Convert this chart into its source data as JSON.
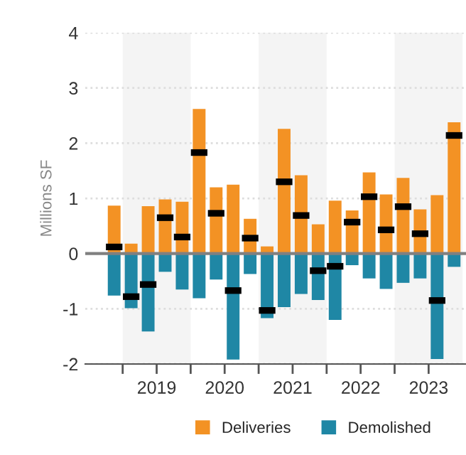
{
  "chart_data": {
    "type": "bar",
    "ylabel": "Millions SF",
    "x": [
      2018.875,
      2019.125,
      2019.375,
      2019.625,
      2019.875,
      2020.125,
      2020.375,
      2020.625,
      2020.875,
      2021.125,
      2021.375,
      2021.625,
      2021.875,
      2022.125,
      2022.375,
      2022.625,
      2022.875,
      2023.125,
      2023.375,
      2023.625,
      2023.875
    ],
    "series": [
      {
        "name": "Deliveries",
        "color": "#f39224",
        "values": [
          0.87,
          0.18,
          0.86,
          0.98,
          0.94,
          2.62,
          1.2,
          1.25,
          0.63,
          0.13,
          2.26,
          1.42,
          0.53,
          0.96,
          0.78,
          1.47,
          1.07,
          1.37,
          0.8,
          1.06,
          2.38
        ]
      },
      {
        "name": "Demolished",
        "color": "#1f87a5",
        "values": [
          -0.76,
          -0.99,
          -1.41,
          -0.33,
          -0.65,
          -0.81,
          -0.47,
          -1.92,
          -0.37,
          -1.17,
          -0.97,
          -0.73,
          -0.84,
          -1.2,
          -0.21,
          -0.45,
          -0.64,
          -0.53,
          -0.45,
          -1.91,
          -0.24
        ]
      },
      {
        "type": "scatter",
        "marker": "square",
        "color": "#000000",
        "values": [
          0.12,
          -0.78,
          -0.56,
          0.65,
          0.3,
          1.83,
          0.73,
          -0.67,
          0.28,
          -1.03,
          1.3,
          0.69,
          -0.31,
          -0.23,
          0.57,
          1.03,
          0.43,
          0.85,
          0.36,
          -0.85,
          2.14
        ]
      }
    ],
    "xlim": [
      2018.45,
      2024.05
    ],
    "xticks": [
      {
        "value": 2019,
        "label": null
      },
      {
        "value": 2019.5,
        "label": "2019"
      },
      {
        "value": 2020,
        "label": null
      },
      {
        "value": 2020.5,
        "label": "2020"
      },
      {
        "value": 2021,
        "label": null
      },
      {
        "value": 2021.5,
        "label": "2021"
      },
      {
        "value": 2022,
        "label": null
      },
      {
        "value": 2022.5,
        "label": "2022"
      },
      {
        "value": 2023,
        "label": null
      },
      {
        "value": 2023.5,
        "label": "2023"
      }
    ],
    "ylim": [
      -2,
      4
    ],
    "yticks": [
      -2,
      -1,
      0,
      1,
      2,
      3,
      4
    ],
    "bands": [
      {
        "axis": "x",
        "from": 2019,
        "to": 2020,
        "color": "#f4f4f4"
      },
      {
        "axis": "x",
        "from": 2021,
        "to": 2022,
        "color": "#f4f4f4"
      },
      {
        "axis": "x",
        "from": 2023,
        "to": 2024,
        "color": "#f4f4f4"
      }
    ],
    "ref_lines": [
      {
        "axis": "y",
        "value": 0,
        "color": "#808080"
      }
    ],
    "grid": "y",
    "legend": "bottom",
    "stacked": true
  }
}
